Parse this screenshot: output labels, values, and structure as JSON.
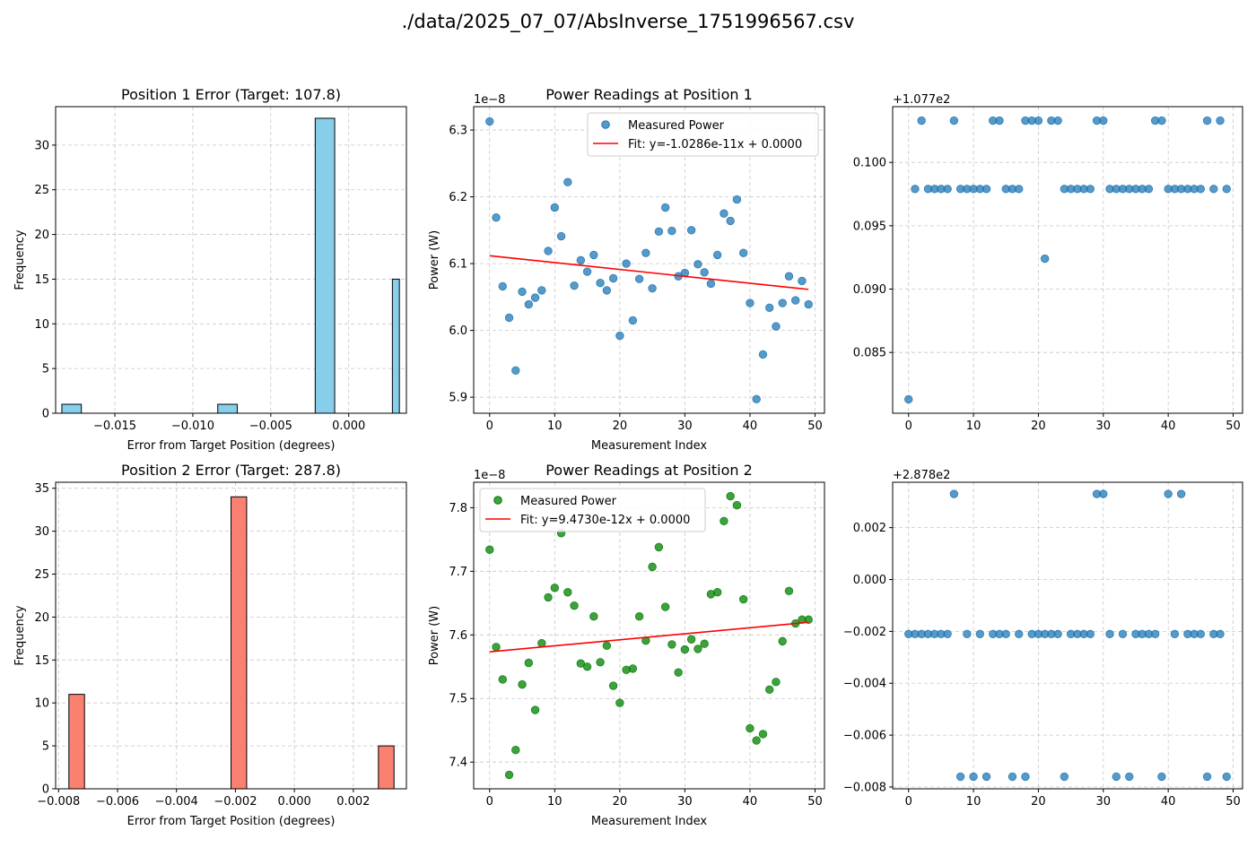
{
  "suptitle": "./data/2025_07_07/AbsInverse_1751996567.csv",
  "colors": {
    "hist1": "#87ceeb",
    "hist2": "#fa8072",
    "scatter_blue": "#1f77b4",
    "scatter_green": "#008000",
    "fit": "#ff0000",
    "grid": "#b0b0b0"
  },
  "chart_data": [
    {
      "id": "hist1",
      "type": "bar",
      "title": "Position 1 Error (Target: 107.8)",
      "xlabel": "Error from Target Position (degrees)",
      "ylabel": "Frequency",
      "xlim": [
        -0.0188,
        0.0037
      ],
      "ylim": [
        0,
        34.3
      ],
      "xticks": [
        -0.015,
        -0.01,
        -0.005,
        0.0
      ],
      "xtick_labels": [
        "−0.015",
        "−0.010",
        "−0.005",
        "0.000"
      ],
      "yticks": [
        0,
        5,
        10,
        15,
        20,
        25,
        30
      ],
      "ytick_labels": [
        "0",
        "5",
        "10",
        "15",
        "20",
        "25",
        "30"
      ],
      "bins": [
        {
          "x0": -0.0184,
          "x1": -0.01715,
          "value": 1
        },
        {
          "x0": -0.0084,
          "x1": -0.00715,
          "value": 1
        },
        {
          "x0": -0.00215,
          "x1": -0.0009,
          "value": 33
        },
        {
          "x0": 0.0028,
          "x1": 0.00325,
          "value": 15
        }
      ]
    },
    {
      "id": "scatter1",
      "type": "scatter",
      "title": "Power Readings at Position 1",
      "xlabel": "Measurement Index",
      "ylabel": "Power (W)",
      "offset_label": "1e−8",
      "xlim": [
        -2.45,
        51.45
      ],
      "ylim": [
        5.876,
        6.335
      ],
      "xticks": [
        0,
        10,
        20,
        30,
        40,
        50
      ],
      "xtick_labels": [
        "0",
        "10",
        "20",
        "30",
        "40",
        "50"
      ],
      "yticks": [
        5.9,
        6.0,
        6.1,
        6.2,
        6.3
      ],
      "ytick_labels": [
        "5.9",
        "6.0",
        "6.1",
        "6.2",
        "6.3"
      ],
      "legend": {
        "placement": "top-right",
        "scatter_label": "Measured Power",
        "fit_label": "Fit: y=-1.0286e-11x + 0.0000"
      },
      "x": [
        0,
        1,
        2,
        3,
        4,
        5,
        6,
        7,
        8,
        9,
        10,
        11,
        12,
        13,
        14,
        15,
        16,
        17,
        18,
        19,
        20,
        21,
        22,
        23,
        24,
        25,
        26,
        27,
        28,
        29,
        30,
        31,
        32,
        33,
        34,
        35,
        36,
        37,
        38,
        39,
        40,
        41,
        42,
        43,
        44,
        45,
        46,
        47,
        48,
        49
      ],
      "y": [
        6.313,
        6.169,
        6.066,
        6.019,
        5.94,
        6.058,
        6.039,
        6.049,
        6.06,
        6.119,
        6.184,
        6.141,
        6.222,
        6.067,
        6.105,
        6.088,
        6.113,
        6.071,
        6.06,
        6.078,
        5.992,
        6.1,
        6.015,
        6.077,
        6.116,
        6.063,
        6.148,
        6.184,
        6.149,
        6.081,
        6.086,
        6.15,
        6.099,
        6.087,
        6.07,
        6.113,
        6.175,
        6.164,
        6.196,
        6.116,
        6.041,
        5.897,
        5.964,
        6.034,
        6.006,
        6.041,
        6.081,
        6.045,
        6.074,
        6.039
      ],
      "fit": {
        "x": [
          0,
          49
        ],
        "y": [
          6.1118,
          6.0614
        ]
      }
    },
    {
      "id": "pos1",
      "type": "scatter",
      "offset_label": "+1.077e2",
      "xlim": [
        -2.45,
        51.45
      ],
      "ylim": [
        0.0802,
        0.1044
      ],
      "xticks": [
        0,
        10,
        20,
        30,
        40,
        50
      ],
      "xtick_labels": [
        "0",
        "10",
        "20",
        "30",
        "40",
        "50"
      ],
      "yticks": [
        0.085,
        0.09,
        0.095,
        0.1
      ],
      "ytick_labels": [
        "0.085",
        "0.090",
        "0.095",
        "0.100"
      ],
      "x": [
        0,
        1,
        2,
        3,
        4,
        5,
        6,
        7,
        8,
        9,
        10,
        11,
        12,
        13,
        14,
        15,
        16,
        17,
        18,
        19,
        20,
        21,
        22,
        23,
        24,
        25,
        26,
        27,
        28,
        29,
        30,
        31,
        32,
        33,
        34,
        35,
        36,
        37,
        38,
        39,
        40,
        41,
        42,
        43,
        44,
        45,
        46,
        47,
        48,
        49
      ],
      "y": [
        0.0813,
        0.0979,
        0.1033,
        0.0979,
        0.0979,
        0.0979,
        0.0979,
        0.1033,
        0.0979,
        0.0979,
        0.0979,
        0.0979,
        0.0979,
        0.1033,
        0.1033,
        0.0979,
        0.0979,
        0.0979,
        0.1033,
        0.1033,
        0.1033,
        0.0924,
        0.1033,
        0.1033,
        0.0979,
        0.0979,
        0.0979,
        0.0979,
        0.0979,
        0.1033,
        0.1033,
        0.0979,
        0.0979,
        0.0979,
        0.0979,
        0.0979,
        0.0979,
        0.0979,
        0.1033,
        0.1033,
        0.0979,
        0.0979,
        0.0979,
        0.0979,
        0.0979,
        0.0979,
        0.1033,
        0.0979,
        0.1033,
        0.0979
      ]
    },
    {
      "id": "hist2",
      "type": "bar",
      "title": "Position 2 Error (Target: 287.8)",
      "xlabel": "Error from Target Position (degrees)",
      "ylabel": "Frequency",
      "xlim": [
        -0.0081,
        0.0038
      ],
      "ylim": [
        0,
        35.7
      ],
      "xticks": [
        -0.008,
        -0.006,
        -0.004,
        -0.002,
        0.0,
        0.002
      ],
      "xtick_labels": [
        "−0.008",
        "−0.006",
        "−0.004",
        "−0.002",
        "0.000",
        "0.002"
      ],
      "yticks": [
        0,
        5,
        10,
        15,
        20,
        25,
        30,
        35
      ],
      "ytick_labels": [
        "0",
        "5",
        "10",
        "15",
        "20",
        "25",
        "30",
        "35"
      ],
      "bins": [
        {
          "x0": -0.00765,
          "x1": -0.00712,
          "value": 11
        },
        {
          "x0": -0.00215,
          "x1": -0.00162,
          "value": 34
        },
        {
          "x0": 0.00285,
          "x1": 0.00338,
          "value": 5
        }
      ]
    },
    {
      "id": "scatter2",
      "type": "scatter",
      "title": "Power Readings at Position 2",
      "xlabel": "Measurement Index",
      "ylabel": "Power (W)",
      "offset_label": "1e−8",
      "xlim": [
        -2.45,
        51.45
      ],
      "ylim": [
        7.358,
        7.84
      ],
      "xticks": [
        0,
        10,
        20,
        30,
        40,
        50
      ],
      "xtick_labels": [
        "0",
        "10",
        "20",
        "30",
        "40",
        "50"
      ],
      "yticks": [
        7.4,
        7.5,
        7.6,
        7.7,
        7.8
      ],
      "ytick_labels": [
        "7.4",
        "7.5",
        "7.6",
        "7.7",
        "7.8"
      ],
      "legend": {
        "placement": "top-left",
        "scatter_label": "Measured Power",
        "fit_label": "Fit: y=9.4730e-12x + 0.0000"
      },
      "x": [
        0,
        1,
        2,
        3,
        4,
        5,
        6,
        7,
        8,
        9,
        10,
        11,
        12,
        13,
        14,
        15,
        16,
        17,
        18,
        19,
        20,
        21,
        22,
        23,
        24,
        25,
        26,
        27,
        28,
        29,
        30,
        31,
        32,
        33,
        34,
        35,
        36,
        37,
        38,
        39,
        40,
        41,
        42,
        43,
        44,
        45,
        46,
        47,
        48,
        49
      ],
      "y": [
        7.734,
        7.581,
        7.53,
        7.38,
        7.419,
        7.522,
        7.556,
        7.482,
        7.587,
        7.659,
        7.674,
        7.76,
        7.667,
        7.646,
        7.555,
        7.55,
        7.629,
        7.557,
        7.583,
        7.52,
        7.493,
        7.545,
        7.547,
        7.629,
        7.591,
        7.707,
        7.738,
        7.644,
        7.585,
        7.541,
        7.577,
        7.593,
        7.578,
        7.586,
        7.664,
        7.667,
        7.779,
        7.818,
        7.804,
        7.656,
        7.453,
        7.434,
        7.444,
        7.514,
        7.526,
        7.59,
        7.669,
        7.618,
        7.624,
        7.624
      ],
      "fit": {
        "x": [
          0,
          49
        ],
        "y": [
          7.5734,
          7.6198
        ]
      }
    },
    {
      "id": "pos2",
      "type": "scatter",
      "offset_label": "+2.878e2",
      "xlim": [
        -2.45,
        51.45
      ],
      "ylim": [
        -0.00807,
        0.00375
      ],
      "xticks": [
        0,
        10,
        20,
        30,
        40,
        50
      ],
      "xtick_labels": [
        "0",
        "10",
        "20",
        "30",
        "40",
        "50"
      ],
      "yticks": [
        -0.008,
        -0.006,
        -0.004,
        -0.002,
        0.0,
        0.002
      ],
      "ytick_labels": [
        "−0.008",
        "−0.006",
        "−0.004",
        "−0.002",
        "0.000",
        "0.002"
      ],
      "x": [
        0,
        1,
        2,
        3,
        4,
        5,
        6,
        7,
        8,
        9,
        10,
        11,
        12,
        13,
        14,
        15,
        16,
        17,
        18,
        19,
        20,
        21,
        22,
        23,
        24,
        25,
        26,
        27,
        28,
        29,
        30,
        31,
        32,
        33,
        34,
        35,
        36,
        37,
        38,
        39,
        40,
        41,
        42,
        43,
        44,
        45,
        46,
        47,
        48,
        49
      ],
      "y": [
        -0.0021,
        -0.0021,
        -0.0021,
        -0.0021,
        -0.0021,
        -0.0021,
        -0.0021,
        0.0033,
        -0.0076,
        -0.0021,
        -0.0076,
        -0.0021,
        -0.0076,
        -0.0021,
        -0.0021,
        -0.0021,
        -0.0076,
        -0.0021,
        -0.0076,
        -0.0021,
        -0.0021,
        -0.0021,
        -0.0021,
        -0.0021,
        -0.0076,
        -0.0021,
        -0.0021,
        -0.0021,
        -0.0021,
        0.0033,
        0.0033,
        -0.0021,
        -0.0076,
        -0.0021,
        -0.0076,
        -0.0021,
        -0.0021,
        -0.0021,
        -0.0021,
        -0.0076,
        0.0033,
        -0.0021,
        0.0033,
        -0.0021,
        -0.0021,
        -0.0021,
        -0.0076,
        -0.0021,
        -0.0021,
        -0.0076
      ]
    }
  ]
}
